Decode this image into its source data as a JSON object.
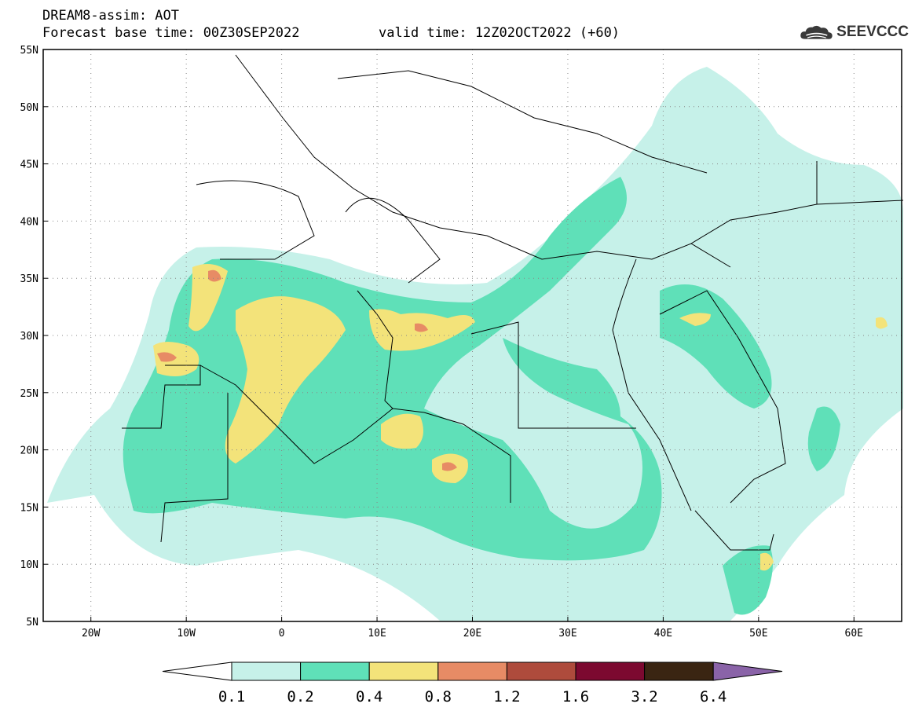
{
  "header": {
    "title": "DREAM8-assim: AOT",
    "base_time": "Forecast base time: 00Z30SEP2022",
    "valid_time": "valid time: 12Z02OCT2022 (+60)"
  },
  "logo": {
    "text": "SEEVCCC",
    "icon": "cloud-logo-icon"
  },
  "map": {
    "lon_range": [
      -25,
      65
    ],
    "lat_range": [
      5,
      55
    ],
    "lon_ticks": [
      {
        "lon": -20,
        "label": "20W"
      },
      {
        "lon": -10,
        "label": "10W"
      },
      {
        "lon": 0,
        "label": "0"
      },
      {
        "lon": 10,
        "label": "10E"
      },
      {
        "lon": 20,
        "label": "20E"
      },
      {
        "lon": 30,
        "label": "30E"
      },
      {
        "lon": 40,
        "label": "40E"
      },
      {
        "lon": 50,
        "label": "50E"
      },
      {
        "lon": 60,
        "label": "60E"
      }
    ],
    "lat_ticks": [
      {
        "lat": 5,
        "label": "5N"
      },
      {
        "lat": 10,
        "label": "10N"
      },
      {
        "lat": 15,
        "label": "15N"
      },
      {
        "lat": 20,
        "label": "20N"
      },
      {
        "lat": 25,
        "label": "25N"
      },
      {
        "lat": 30,
        "label": "30N"
      },
      {
        "lat": 35,
        "label": "35N"
      },
      {
        "lat": 40,
        "label": "40N"
      },
      {
        "lat": 45,
        "label": "45N"
      },
      {
        "lat": 50,
        "label": "50N"
      },
      {
        "lat": 55,
        "label": "55N"
      }
    ],
    "grid": "dotted"
  },
  "colorbar": {
    "levels": [
      "0.1",
      "0.2",
      "0.4",
      "0.8",
      "1.2",
      "1.6",
      "3.2",
      "6.4"
    ],
    "colors": [
      "#ffffff",
      "#c6f1e9",
      "#5fe0b8",
      "#f3e37a",
      "#e78b65",
      "#ae4b3c",
      "#7c0930",
      "#3a2512",
      "#8a63a8"
    ]
  }
}
